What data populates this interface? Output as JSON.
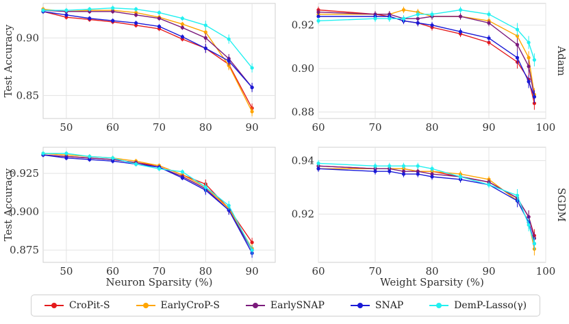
{
  "chart_data": {
    "type": "line",
    "legend": [
      {
        "name": "CroPit-S",
        "color": "#e41a1c"
      },
      {
        "name": "EarlyCroP-S",
        "color": "#ffa500"
      },
      {
        "name": "EarlySNAP",
        "color": "#7b1a7b"
      },
      {
        "name": "SNAP",
        "color": "#1a1ad6"
      },
      {
        "name": "DemP-Lasso(γ)",
        "color": "#22f0f0"
      }
    ],
    "panels": [
      {
        "id": "neuron-adam",
        "xlabel": "",
        "ylabel": "Test Accuracy",
        "row_label": "",
        "xlim": [
          45,
          95
        ],
        "ylim": [
          0.83,
          0.93
        ],
        "xticks": [
          50,
          60,
          70,
          80,
          90
        ],
        "yticks": [
          0.85,
          0.9
        ],
        "ytick_labels": [
          "0.85",
          "0.90"
        ],
        "series": [
          {
            "name": "CroPit-S",
            "x": [
              45,
              50,
              55,
              60,
              65,
              70,
              75,
              80,
              85,
              90
            ],
            "y": [
              0.923,
              0.918,
              0.916,
              0.914,
              0.911,
              0.908,
              0.899,
              0.891,
              0.877,
              0.839
            ]
          },
          {
            "name": "EarlyCroP-S",
            "x": [
              45,
              50,
              55,
              60,
              65,
              70,
              75,
              80,
              85,
              90
            ],
            "y": [
              0.925,
              0.923,
              0.924,
              0.924,
              0.922,
              0.918,
              0.912,
              0.905,
              0.876,
              0.836
            ]
          },
          {
            "name": "EarlySNAP",
            "x": [
              45,
              50,
              55,
              60,
              65,
              70,
              75,
              80,
              85,
              90
            ],
            "y": [
              0.924,
              0.923,
              0.923,
              0.923,
              0.92,
              0.917,
              0.909,
              0.9,
              0.882,
              0.857
            ]
          },
          {
            "name": "SNAP",
            "x": [
              45,
              50,
              55,
              60,
              65,
              70,
              75,
              80,
              85,
              90
            ],
            "y": [
              0.923,
              0.92,
              0.917,
              0.915,
              0.913,
              0.91,
              0.901,
              0.891,
              0.88,
              0.857
            ]
          },
          {
            "name": "DemP-Lasso(γ)",
            "x": [
              45,
              50,
              55,
              60,
              65,
              70,
              75,
              80,
              85,
              90
            ],
            "y": [
              0.924,
              0.924,
              0.925,
              0.926,
              0.925,
              0.922,
              0.917,
              0.911,
              0.899,
              0.874
            ]
          }
        ]
      },
      {
        "id": "weight-adam",
        "xlabel": "",
        "ylabel": "",
        "row_label": "Adam",
        "xlim": [
          60,
          100
        ],
        "ylim": [
          0.877,
          0.93
        ],
        "xticks": [
          60,
          70,
          80,
          90,
          100
        ],
        "yticks": [
          0.88,
          0.9,
          0.92
        ],
        "ytick_labels": [
          "0.88",
          "0.90",
          "0.92"
        ],
        "series": [
          {
            "name": "CroPit-S",
            "x": [
              60,
              70,
              72.5,
              75,
              77.5,
              80,
              85,
              90,
              95,
              97,
              98
            ],
            "y": [
              0.927,
              0.925,
              0.924,
              0.922,
              0.921,
              0.919,
              0.916,
              0.912,
              0.903,
              0.895,
              0.884
            ]
          },
          {
            "name": "EarlyCroP-S",
            "x": [
              60,
              70,
              72.5,
              75,
              77.5,
              80,
              85,
              90,
              95,
              97,
              98
            ],
            "y": [
              0.925,
              0.925,
              0.925,
              0.927,
              0.926,
              0.924,
              0.924,
              0.922,
              0.915,
              0.905,
              0.888
            ]
          },
          {
            "name": "EarlySNAP",
            "x": [
              60,
              70,
              72.5,
              75,
              77.5,
              80,
              85,
              90,
              95,
              97,
              98
            ],
            "y": [
              0.926,
              0.925,
              0.925,
              0.923,
              0.923,
              0.924,
              0.924,
              0.921,
              0.911,
              0.901,
              0.887
            ]
          },
          {
            "name": "SNAP",
            "x": [
              60,
              70,
              72.5,
              75,
              77.5,
              80,
              85,
              90,
              95,
              97,
              98
            ],
            "y": [
              0.924,
              0.924,
              0.924,
              0.922,
              0.921,
              0.92,
              0.917,
              0.914,
              0.905,
              0.894,
              0.887
            ]
          },
          {
            "name": "DemP-Lasso(γ)",
            "x": [
              60,
              70,
              72.5,
              75,
              77.5,
              80,
              85,
              90,
              95,
              97,
              98
            ],
            "y": [
              0.922,
              0.923,
              0.923,
              0.923,
              0.925,
              0.925,
              0.927,
              0.925,
              0.918,
              0.912,
              0.904
            ]
          }
        ]
      },
      {
        "id": "neuron-sgdm",
        "xlabel": "Neuron Sparsity (%)",
        "ylabel": "Test Accuracy",
        "row_label": "",
        "xlim": [
          45,
          95
        ],
        "ylim": [
          0.867,
          0.942
        ],
        "xticks": [
          50,
          60,
          70,
          80,
          90
        ],
        "yticks": [
          0.875,
          0.9,
          0.925
        ],
        "ytick_labels": [
          "0.875",
          "0.900",
          "0.925"
        ],
        "series": [
          {
            "name": "CroPit-S",
            "x": [
              45,
              50,
              55,
              60,
              65,
              70,
              75,
              80,
              85,
              90
            ],
            "y": [
              0.937,
              0.936,
              0.935,
              0.934,
              0.932,
              0.93,
              0.924,
              0.918,
              0.902,
              0.88
            ]
          },
          {
            "name": "EarlyCroP-S",
            "x": [
              45,
              50,
              55,
              60,
              65,
              70,
              75,
              80,
              85,
              90
            ],
            "y": [
              0.938,
              0.937,
              0.936,
              0.935,
              0.933,
              0.93,
              0.924,
              0.916,
              0.902,
              0.876
            ]
          },
          {
            "name": "EarlySNAP",
            "x": [
              45,
              50,
              55,
              60,
              65,
              70,
              75,
              80,
              85,
              90
            ],
            "y": [
              0.937,
              0.936,
              0.935,
              0.934,
              0.932,
              0.929,
              0.923,
              0.915,
              0.901,
              0.875
            ]
          },
          {
            "name": "SNAP",
            "x": [
              45,
              50,
              55,
              60,
              65,
              70,
              75,
              80,
              85,
              90
            ],
            "y": [
              0.937,
              0.935,
              0.934,
              0.933,
              0.931,
              0.929,
              0.922,
              0.914,
              0.901,
              0.873
            ]
          },
          {
            "name": "DemP-Lasso(γ)",
            "x": [
              45,
              50,
              55,
              60,
              65,
              70,
              75,
              80,
              85,
              90
            ],
            "y": [
              0.938,
              0.938,
              0.936,
              0.935,
              0.931,
              0.928,
              0.926,
              0.916,
              0.904,
              0.875
            ]
          }
        ]
      },
      {
        "id": "weight-sgdm",
        "xlabel": "Weight Sparsity (%)",
        "ylabel": "",
        "row_label": "SGDM",
        "xlim": [
          60,
          100
        ],
        "ylim": [
          0.902,
          0.945
        ],
        "xticks": [
          60,
          70,
          80,
          90,
          100
        ],
        "yticks": [
          0.92,
          0.94
        ],
        "ytick_labels": [
          "0.92",
          "0.94"
        ],
        "series": [
          {
            "name": "CroPit-S",
            "x": [
              60,
              70,
              72.5,
              75,
              77.5,
              80,
              85,
              90,
              95,
              97,
              98
            ],
            "y": [
              0.938,
              0.937,
              0.937,
              0.937,
              0.936,
              0.936,
              0.934,
              0.932,
              0.926,
              0.919,
              0.912
            ]
          },
          {
            "name": "EarlyCroP-S",
            "x": [
              60,
              70,
              72.5,
              75,
              77.5,
              80,
              85,
              90,
              95,
              97,
              98
            ],
            "y": [
              0.937,
              0.937,
              0.937,
              0.937,
              0.936,
              0.936,
              0.935,
              0.933,
              0.925,
              0.917,
              0.907
            ]
          },
          {
            "name": "EarlySNAP",
            "x": [
              60,
              70,
              72.5,
              75,
              77.5,
              80,
              85,
              90,
              95,
              97,
              98
            ],
            "y": [
              0.938,
              0.937,
              0.937,
              0.936,
              0.936,
              0.935,
              0.934,
              0.932,
              0.926,
              0.919,
              0.911
            ]
          },
          {
            "name": "SNAP",
            "x": [
              60,
              70,
              72.5,
              75,
              77.5,
              80,
              85,
              90,
              95,
              97,
              98
            ],
            "y": [
              0.937,
              0.936,
              0.936,
              0.935,
              0.935,
              0.934,
              0.933,
              0.931,
              0.925,
              0.917,
              0.909
            ]
          },
          {
            "name": "DemP-Lasso(γ)",
            "x": [
              60,
              70,
              72.5,
              75,
              77.5,
              80,
              85,
              90,
              95,
              97,
              98
            ],
            "y": [
              0.939,
              0.938,
              0.938,
              0.938,
              0.938,
              0.937,
              0.934,
              0.931,
              0.927,
              0.916,
              0.909
            ]
          }
        ]
      }
    ]
  }
}
